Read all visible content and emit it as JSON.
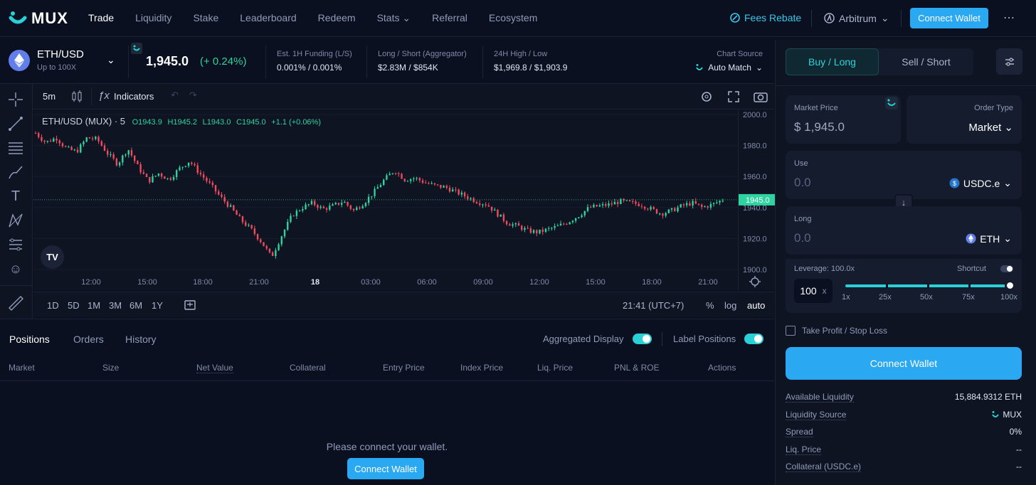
{
  "brand": {
    "name": "MUX"
  },
  "nav": {
    "items": [
      "Trade",
      "Liquidity",
      "Stake",
      "Leaderboard",
      "Redeem",
      "Stats",
      "Referral",
      "Ecosystem"
    ],
    "fees_rebate": "Fees Rebate",
    "network": "Arbitrum",
    "connect": "Connect Wallet"
  },
  "ticker": {
    "pair": "ETH/USD",
    "leverage": "Up to 100X",
    "price": "1,945.0",
    "change": "(+ 0.24%)",
    "funding_label": "Est. 1H Funding (L/S)",
    "funding_value": "0.001% / 0.001%",
    "ls_label": "Long / Short (Aggregator)",
    "ls_value": "$2.83M / $854K",
    "hl_label": "24H High / Low",
    "hl_value": "$1,969.8 / $1,903.9",
    "source_label": "Chart Source",
    "source_value": "Auto Match"
  },
  "chart_toolbar": {
    "interval": "5m",
    "indicators": "Indicators"
  },
  "chart_legend": {
    "symbol": "ETH/USD (MUX) · 5",
    "o": "O1943.9",
    "h": "H1945.2",
    "l": "L1943.0",
    "c": "C1945.0",
    "chg": "+1.1 (+0.06%)"
  },
  "chart_data": {
    "type": "candlestick",
    "x_ticks": [
      "12:00",
      "15:00",
      "18:00",
      "21:00",
      "18",
      "03:00",
      "06:00",
      "09:00",
      "12:00",
      "15:00",
      "18:00",
      "21:00"
    ],
    "y_ticks": [
      "2000.0",
      "1980.0",
      "1960.0",
      "1940.0",
      "1920.0",
      "1900.0"
    ],
    "ylim": [
      1900,
      2000
    ],
    "last_price": "1945.0",
    "close_path": [
      1988,
      1982,
      1985,
      1978,
      1976,
      1985,
      1984,
      1975,
      1968,
      1978,
      1966,
      1957,
      1962,
      1958,
      1965,
      1970,
      1962,
      1955,
      1947,
      1940,
      1932,
      1926,
      1918,
      1908,
      1922,
      1935,
      1940,
      1943,
      1939,
      1941,
      1944,
      1938,
      1943,
      1950,
      1958,
      1964,
      1958,
      1959,
      1956,
      1954,
      1953,
      1950,
      1947,
      1944,
      1942,
      1936,
      1930,
      1928,
      1925,
      1924,
      1926,
      1928,
      1931,
      1935,
      1940,
      1941,
      1942,
      1944,
      1943,
      1942,
      1939,
      1936,
      1938,
      1941,
      1943,
      1940,
      1942,
      1945
    ]
  },
  "range": {
    "items": [
      "1D",
      "5D",
      "1M",
      "3M",
      "6M",
      "1Y"
    ],
    "time": "21:41 (UTC+7)",
    "pct": "%",
    "log": "log",
    "auto": "auto"
  },
  "positions": {
    "tabs": [
      "Positions",
      "Orders",
      "History"
    ],
    "agg": "Aggregated Display",
    "label_pos": "Label Positions",
    "headers": [
      "Market",
      "Size",
      "Net Value",
      "Collateral",
      "Entry Price",
      "Index Price",
      "Liq. Price",
      "PNL & ROE",
      "Actions"
    ],
    "empty": "Please connect your wallet.",
    "connect": "Connect Wallet"
  },
  "panel": {
    "buy": "Buy / Long",
    "sell": "Sell / Short",
    "market_price_label": "Market Price",
    "market_price": "$ 1,945.0",
    "order_type_label": "Order Type",
    "order_type": "Market",
    "use_label": "Use",
    "use_value": "0.0",
    "use_token": "USDC.e",
    "long_label": "Long",
    "long_value": "0.0",
    "long_token": "ETH",
    "leverage_label": "Leverage: 100.0x",
    "shortcut": "Shortcut",
    "leverage_input": "100",
    "leverage_x": "x",
    "leverage_value_pct": 100,
    "lev_marks": [
      "1x",
      "25x",
      "50x",
      "75x",
      "100x"
    ],
    "tpsl": "Take Profit / Stop Loss",
    "connect": "Connect Wallet",
    "info": [
      {
        "label": "Available Liquidity",
        "value": "15,884.9312 ETH"
      },
      {
        "label": "Liquidity Source",
        "value": "MUX"
      },
      {
        "label": "Spread",
        "value": "0%"
      },
      {
        "label": "Liq. Price",
        "value": "--"
      },
      {
        "label": "Collateral (USDC.e)",
        "value": "--"
      }
    ]
  },
  "colors": {
    "accent": "#2ad0d6",
    "up": "#2ed3a0",
    "down": "#f04b5d",
    "button": "#2aa8f2"
  }
}
